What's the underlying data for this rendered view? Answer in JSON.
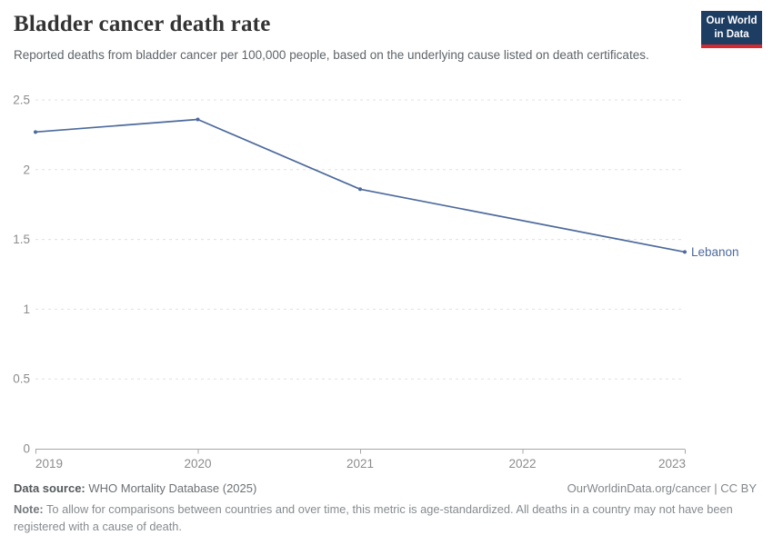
{
  "header": {
    "title": "Bladder cancer death rate",
    "subtitle": "Reported deaths from bladder cancer per 100,000 people, based on the underlying cause listed on death certificates.",
    "logo": {
      "line1": "Our World",
      "line2": "in Data",
      "bg_color": "#1d3d63",
      "accent_color": "#d7282f"
    }
  },
  "chart_data": {
    "type": "line",
    "title": "Bladder cancer death rate",
    "xlabel": "",
    "ylabel": "",
    "xlim": [
      2019,
      2023
    ],
    "ylim": [
      0,
      2.5
    ],
    "xticks": [
      2019,
      2020,
      2021,
      2022,
      2023
    ],
    "yticks": [
      0,
      0.5,
      1,
      1.5,
      2,
      2.5
    ],
    "grid": "horizontal-dashed",
    "legend_position": "end-of-line",
    "series": [
      {
        "name": "Lebanon",
        "color": "#4c6a9c",
        "x": [
          2019,
          2020,
          2021,
          2023
        ],
        "values": [
          2.27,
          2.36,
          1.86,
          1.41
        ]
      }
    ],
    "end_label": "Lebanon",
    "style": {
      "gridline_color": "#e0e0e0",
      "axis_color": "#a7a7a7",
      "tick_label_color": "#8c8c8c",
      "line_color": "#4c6a9c",
      "end_label_color": "#4c6a9c"
    }
  },
  "footer": {
    "source_label": "Data source:",
    "source_value": " WHO Mortality Database (2025)",
    "rights": "OurWorldinData.org/cancer | CC BY",
    "note_label": "Note:",
    "note_value": " To allow for comparisons between countries and over time, this metric is age-standardized. All deaths in a country may not have been registered with a cause of death."
  }
}
